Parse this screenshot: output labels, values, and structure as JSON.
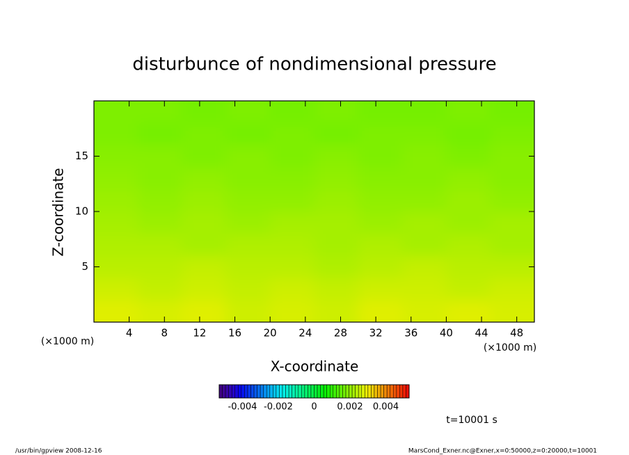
{
  "chart_data": {
    "type": "heatmap",
    "title": "disturbunce of nondimensional pressure",
    "x_label": "X-coordinate",
    "y_label": "Z-coordinate",
    "x_unit_label": "(×1000 m)",
    "y_unit_label": "(×1000 m)",
    "time_label": "t=10001 s",
    "footer_left": "/usr/bin/gpview   2008-12-16",
    "footer_right": "MarsCond_Exner.nc@Exner,x=0:50000,z=0:20000,t=10001",
    "x": [
      2.5,
      7.5,
      12.5,
      17.5,
      22.5,
      27.5,
      32.5,
      37.5,
      42.5,
      47.5
    ],
    "z": [
      1,
      3,
      5,
      7,
      9,
      11,
      13,
      15,
      17,
      19
    ],
    "values": [
      [
        0.0028,
        0.0027,
        0.0028,
        0.0026,
        0.0027,
        0.0026,
        0.0028,
        0.0027,
        0.0028,
        0.0027
      ],
      [
        0.0026,
        0.0025,
        0.0026,
        0.0025,
        0.0026,
        0.0025,
        0.0026,
        0.0026,
        0.0025,
        0.0026
      ],
      [
        0.0024,
        0.0024,
        0.0025,
        0.0024,
        0.0024,
        0.0023,
        0.0024,
        0.0025,
        0.0024,
        0.0024
      ],
      [
        0.0023,
        0.0023,
        0.0022,
        0.0023,
        0.0023,
        0.0022,
        0.0023,
        0.0022,
        0.0023,
        0.0022
      ],
      [
        0.0022,
        0.0021,
        0.0022,
        0.0021,
        0.0022,
        0.0022,
        0.0021,
        0.0022,
        0.0021,
        0.0022
      ],
      [
        0.0021,
        0.002,
        0.0021,
        0.002,
        0.002,
        0.0021,
        0.002,
        0.002,
        0.0021,
        0.002
      ],
      [
        0.002,
        0.0019,
        0.002,
        0.0019,
        0.0019,
        0.002,
        0.0019,
        0.0019,
        0.002,
        0.0019
      ],
      [
        0.0019,
        0.0019,
        0.0018,
        0.0019,
        0.0018,
        0.0019,
        0.0018,
        0.0019,
        0.0018,
        0.0019
      ],
      [
        0.0018,
        0.0017,
        0.0018,
        0.0017,
        0.0018,
        0.0017,
        0.0018,
        0.0018,
        0.0017,
        0.0018
      ],
      [
        0.0018,
        0.0018,
        0.0017,
        0.0018,
        0.0017,
        0.0018,
        0.0017,
        0.0017,
        0.0018,
        0.0017
      ]
    ],
    "xlim": [
      0,
      50
    ],
    "ylim": [
      0,
      20
    ],
    "xticks": [
      4,
      8,
      12,
      16,
      20,
      24,
      28,
      32,
      36,
      40,
      44,
      48
    ],
    "yticks": [
      5,
      10,
      15
    ],
    "clim": [
      -0.0053,
      0.0053
    ],
    "cticks": [
      -0.004,
      -0.002,
      0,
      0.002,
      0.004
    ]
  }
}
